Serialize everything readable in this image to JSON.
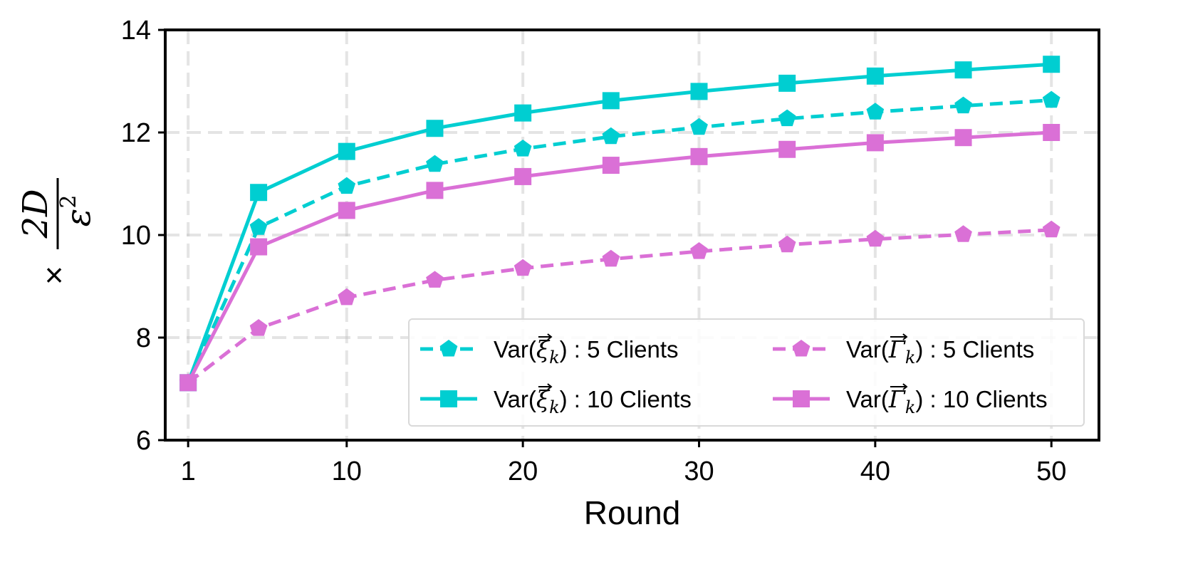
{
  "chart_data": {
    "type": "line",
    "title": "",
    "xlabel": "Round",
    "ylabel": {
      "prefix": "×",
      "numerator": "2D",
      "denominator": "ε",
      "denominator_exp": "2"
    },
    "x": [
      1,
      5,
      10,
      15,
      20,
      25,
      30,
      35,
      40,
      45,
      50
    ],
    "xticks": [
      1,
      10,
      20,
      30,
      40,
      50
    ],
    "yticks": [
      6,
      8,
      10,
      12,
      14
    ],
    "xlim": [
      -0.3,
      52.7
    ],
    "ylim": [
      6,
      14
    ],
    "grid": true,
    "legend_position": "lower-right",
    "series": [
      {
        "name": "Var(ξ⃗k) : 5 Clients",
        "legend": {
          "prefix": "Var(",
          "sym": "ξ",
          "sub": "k",
          "suffix": ") : 5 Clients"
        },
        "color": "#00CED1",
        "line_style": "dashed",
        "marker": "pentagon",
        "values": [
          7.12,
          10.15,
          10.95,
          11.38,
          11.68,
          11.92,
          12.1,
          12.27,
          12.4,
          12.52,
          12.63
        ]
      },
      {
        "name": "Var(ξ⃗k) : 10 Clients",
        "legend": {
          "prefix": "Var(",
          "sym": "ξ",
          "sub": "k",
          "suffix": ") : 10 Clients"
        },
        "color": "#00CED1",
        "line_style": "solid",
        "marker": "square",
        "values": [
          7.12,
          10.83,
          11.63,
          12.08,
          12.38,
          12.62,
          12.8,
          12.96,
          13.1,
          13.22,
          13.33
        ]
      },
      {
        "name": "Var(Γ⃗k) : 5 Clients",
        "legend": {
          "prefix": "Var(",
          "sym": "Γ",
          "sub": "k",
          "suffix": ") : 5 Clients"
        },
        "color": "#DA70D6",
        "line_style": "dashed",
        "marker": "pentagon",
        "values": [
          7.12,
          8.18,
          8.78,
          9.12,
          9.35,
          9.53,
          9.68,
          9.81,
          9.92,
          10.01,
          10.1
        ]
      },
      {
        "name": "Var(Γ⃗k) : 10 Clients",
        "legend": {
          "prefix": "Var(",
          "sym": "Γ",
          "sub": "k",
          "suffix": ") : 10 Clients"
        },
        "color": "#DA70D6",
        "line_style": "solid",
        "marker": "square",
        "values": [
          7.12,
          9.77,
          10.48,
          10.87,
          11.14,
          11.36,
          11.53,
          11.67,
          11.8,
          11.9,
          12.0
        ]
      }
    ]
  }
}
